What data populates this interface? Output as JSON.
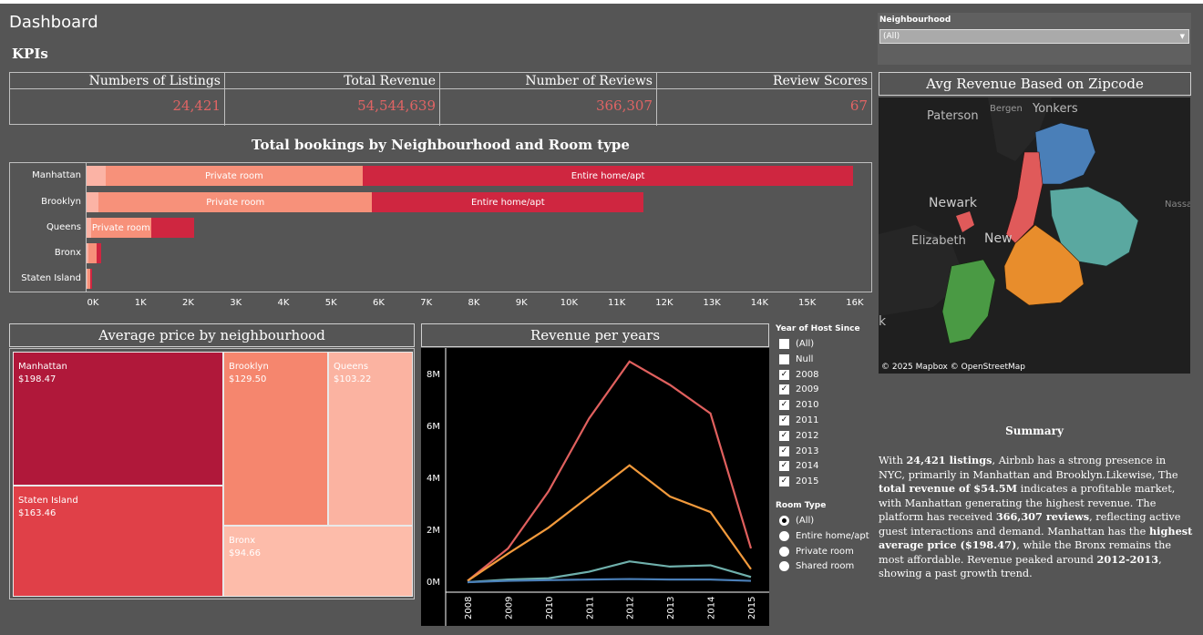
{
  "header": {
    "title": "Dashboard",
    "kpis_label": "KPIs"
  },
  "kpis": [
    {
      "label": "Numbers of Listings",
      "value": "24,421"
    },
    {
      "label": "Total Revenue",
      "value": "54,544,639"
    },
    {
      "label": "Number of Reviews",
      "value": "366,307"
    },
    {
      "label": "Review Scores",
      "value": "67"
    }
  ],
  "bookings_chart": {
    "title": "Total bookings by Neighbourhood and Room type",
    "chart_data": {
      "type": "bar",
      "orientation": "horizontal-stacked",
      "categories": [
        "Manhattan",
        "Brooklyn",
        "Queens",
        "Bronx",
        "Staten Island"
      ],
      "series": [
        {
          "name": "Shared room",
          "values": [
            400,
            250,
            100,
            30,
            10
          ]
        },
        {
          "name": "Private room",
          "values": [
            5400,
            5750,
            1250,
            180,
            60
          ]
        },
        {
          "name": "Entire home/apt",
          "values": [
            10300,
            5700,
            900,
            100,
            40
          ]
        }
      ],
      "segment_labels": [
        [
          "",
          "Private room",
          "Entire home/apt"
        ],
        [
          "",
          "Private room",
          "Entire home/apt"
        ],
        [
          "",
          "Private room",
          ""
        ],
        [
          "",
          "",
          ""
        ],
        [
          "",
          "",
          ""
        ]
      ],
      "xlim": [
        0,
        16500
      ],
      "x_ticks": [
        "0K",
        "1K",
        "2K",
        "3K",
        "4K",
        "5K",
        "6K",
        "7K",
        "8K",
        "9K",
        "10K",
        "11K",
        "12K",
        "13K",
        "14K",
        "15K",
        "16K"
      ],
      "colors": {
        "Shared room": "#fbb3a5",
        "Private room": "#f7917a",
        "Entire home/apt": "#cf2640"
      }
    }
  },
  "avg_price": {
    "title": "Average price by neighbourhood",
    "cells": [
      {
        "name": "Manhattan",
        "value": "$198.47",
        "color": "#b0183a"
      },
      {
        "name": "Staten Island",
        "value": "$163.46",
        "color": "#e04048"
      },
      {
        "name": "Brooklyn",
        "value": "$129.50",
        "color": "#f5866e"
      },
      {
        "name": "Queens",
        "value": "$103.22",
        "color": "#fbb3a1"
      },
      {
        "name": "Bronx",
        "value": "$94.66",
        "color": "#fdbcaa"
      }
    ]
  },
  "revenue_chart": {
    "title": "Revenue per years",
    "chart_data": {
      "type": "line",
      "x": [
        "2008",
        "2009",
        "2010",
        "2011",
        "2012",
        "2013",
        "2014",
        "2015"
      ],
      "y_ticks": [
        "0M",
        "2M",
        "4M",
        "6M",
        "8M"
      ],
      "ylim": [
        0,
        8.6
      ],
      "series": [
        {
          "color": "#e0605e",
          "values": [
            0.05,
            1.3,
            3.5,
            6.3,
            8.5,
            7.6,
            6.5,
            1.3
          ]
        },
        {
          "color": "#f29a3c",
          "values": [
            0.05,
            1.1,
            2.1,
            3.3,
            4.5,
            3.3,
            2.7,
            0.5
          ]
        },
        {
          "color": "#6fb0ac",
          "values": [
            0.0,
            0.1,
            0.15,
            0.4,
            0.8,
            0.6,
            0.65,
            0.2
          ]
        },
        {
          "color": "#4a7fb8",
          "values": [
            0.0,
            0.05,
            0.08,
            0.1,
            0.12,
            0.1,
            0.1,
            0.05
          ]
        }
      ]
    }
  },
  "filters": {
    "year_title": "Year of Host Since",
    "year_options": [
      {
        "label": "(All)",
        "checked": false
      },
      {
        "label": "Null",
        "checked": false
      },
      {
        "label": "2008",
        "checked": true
      },
      {
        "label": "2009",
        "checked": true
      },
      {
        "label": "2010",
        "checked": true
      },
      {
        "label": "2011",
        "checked": true
      },
      {
        "label": "2012",
        "checked": true
      },
      {
        "label": "2013",
        "checked": true
      },
      {
        "label": "2014",
        "checked": true
      },
      {
        "label": "2015",
        "checked": true
      }
    ],
    "room_title": "Room Type",
    "room_options": [
      {
        "label": "(All)",
        "selected": true
      },
      {
        "label": "Entire home/apt",
        "selected": false
      },
      {
        "label": "Private room",
        "selected": false
      },
      {
        "label": "Shared room",
        "selected": false
      }
    ],
    "neighbourhood_title": "Neighbourhood",
    "neighbourhood_value": "(All)"
  },
  "map": {
    "title": "Avg Revenue Based on Zipcode",
    "labels": [
      "Paterson",
      "Bergen",
      "Yonkers",
      "Newark",
      "Elizabeth",
      "New",
      "Nassa",
      "k"
    ],
    "attribution": "© 2025 Mapbox  © OpenStreetMap",
    "colors": {
      "manhattan": "#e05a5a",
      "bronx": "#4a7fb8",
      "queens": "#5aa8a0",
      "brooklyn": "#e88d2c",
      "staten_island": "#4a9a44"
    }
  },
  "summary": {
    "title": "Summary",
    "parts": [
      {
        "t": "With ",
        "b": false
      },
      {
        "t": "24,421 listings",
        "b": true
      },
      {
        "t": ", Airbnb has a strong presence in NYC, primarily in Manhattan and Brooklyn.Likewise, The ",
        "b": false
      },
      {
        "t": "total revenue of $54.5M",
        "b": true
      },
      {
        "t": " indicates a profitable market, with Manhattan generating the highest revenue. The platform has received ",
        "b": false
      },
      {
        "t": "366,307 reviews",
        "b": true
      },
      {
        "t": ", reflecting active guest interactions and demand. Manhattan has the ",
        "b": false
      },
      {
        "t": "highest average price ($198.47)",
        "b": true
      },
      {
        "t": ", while the Bronx remains the most affordable. Revenue peaked around ",
        "b": false
      },
      {
        "t": "2012-2013",
        "b": true
      },
      {
        "t": ", showing a past growth trend.",
        "b": false
      }
    ]
  }
}
